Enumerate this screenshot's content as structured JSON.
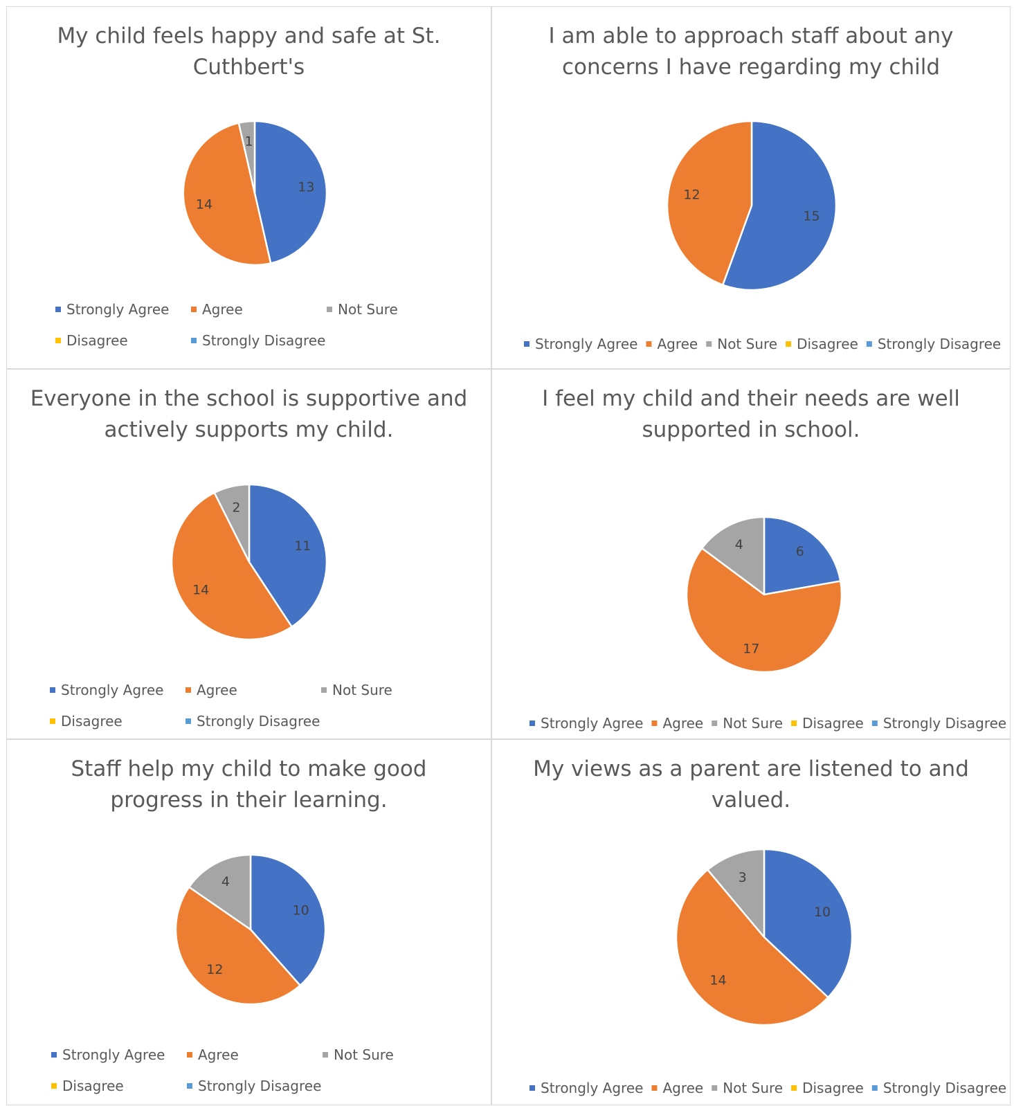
{
  "legend_labels": [
    "Strongly Agree",
    "Agree",
    "Not Sure",
    "Disagree",
    "Strongly Disagree"
  ],
  "series_colors": [
    "#4472C4",
    "#ED7D31",
    "#A5A5A5",
    "#FFC000",
    "#5B9BD5"
  ],
  "chart_data": [
    {
      "type": "pie",
      "title": "My child feels happy and safe at St. Cuthbert's",
      "categories": [
        "Strongly Agree",
        "Agree",
        "Not Sure",
        "Disagree",
        "Strongly Disagree"
      ],
      "values": [
        13,
        14,
        1,
        0,
        0
      ],
      "legend": "bottom"
    },
    {
      "type": "pie",
      "title": "I am able to approach staff about any concerns I have regarding my child",
      "categories": [
        "Strongly Agree",
        "Agree",
        "Not Sure",
        "Disagree",
        "Strongly Disagree"
      ],
      "values": [
        15,
        12,
        0,
        0,
        0
      ],
      "legend": "bottom"
    },
    {
      "type": "pie",
      "title": "Everyone in the school is supportive and actively supports my child.",
      "categories": [
        "Strongly Agree",
        "Agree",
        "Not Sure",
        "Disagree",
        "Strongly Disagree"
      ],
      "values": [
        11,
        14,
        2,
        0,
        0
      ],
      "legend": "bottom"
    },
    {
      "type": "pie",
      "title": "I feel my child and their needs are well supported in school.",
      "categories": [
        "Strongly Agree",
        "Agree",
        "Not Sure",
        "Disagree",
        "Strongly Disagree"
      ],
      "values": [
        6,
        17,
        4,
        0,
        0
      ],
      "legend": "bottom"
    },
    {
      "type": "pie",
      "title": "Staff help my child to make good progress in their learning.",
      "categories": [
        "Strongly Agree",
        "Agree",
        "Not Sure",
        "Disagree",
        "Strongly Disagree"
      ],
      "values": [
        10,
        12,
        4,
        0,
        0
      ],
      "legend": "bottom"
    },
    {
      "type": "pie",
      "title": "My views as a parent are listened to and valued.",
      "categories": [
        "Strongly Agree",
        "Agree",
        "Not Sure",
        "Disagree",
        "Strongly Disagree"
      ],
      "values": [
        10,
        14,
        3,
        0,
        0
      ],
      "legend": "bottom"
    }
  ]
}
